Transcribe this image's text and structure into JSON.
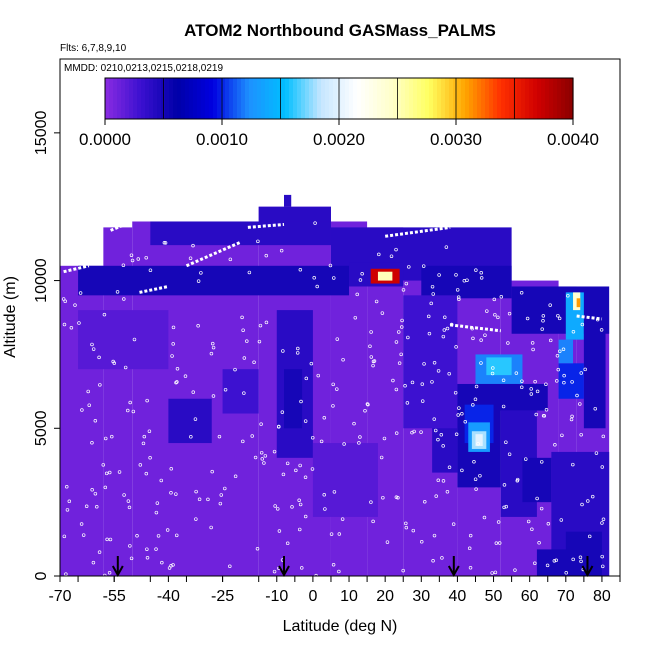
{
  "chart_data": {
    "type": "heatmap",
    "title": "ATOM2 Northbound GASMass_PALMS",
    "subtitle_flights": "Flts: 6,7,8,9,10",
    "subtitle_dates": "MMDD: 0210,0213,0215,0218,0219",
    "xlabel": "Latitude (deg N)",
    "ylabel": "Altitude (m)",
    "xlim": [
      -70,
      85
    ],
    "ylim": [
      0,
      17500
    ],
    "x_ticks": [
      "-70",
      "-55",
      "-40",
      "-25",
      "-10",
      "0",
      "10",
      "20",
      "30",
      "40",
      "50",
      "60",
      "70",
      "80"
    ],
    "x_tick_values": [
      -70,
      -55,
      -40,
      -25,
      -10,
      0,
      10,
      20,
      30,
      40,
      50,
      60,
      70,
      80
    ],
    "y_ticks": [
      "0",
      "5000",
      "10000",
      "15000"
    ],
    "y_tick_values": [
      0,
      5000,
      10000,
      15000
    ],
    "colorbar": {
      "ticks": [
        "0.0000",
        "0.0010",
        "0.0020",
        "0.0030",
        "0.0040"
      ],
      "tick_values": [
        0,
        0.001,
        0.002,
        0.003,
        0.004
      ],
      "range": [
        0,
        0.004
      ],
      "colors": [
        "#8a2be2",
        "#3b10d0",
        "#0000a8",
        "#0000e0",
        "#1e90ff",
        "#00bfff",
        "#c6e6ff",
        "#ffffff",
        "#ffffc8",
        "#ffff60",
        "#ffa500",
        "#ff3000",
        "#d00000",
        "#8b0000"
      ]
    },
    "background_value": 0.0001,
    "coverage": [
      {
        "lat": [
          -70,
          -58
        ],
        "alt_max": 10500
      },
      {
        "lat": [
          -58,
          -50
        ],
        "alt_max": 11800
      },
      {
        "lat": [
          -50,
          -15
        ],
        "alt_max": 12000
      },
      {
        "lat": [
          -15,
          5
        ],
        "alt_max": 12500
      },
      {
        "lat": [
          5,
          15
        ],
        "alt_max": 12000
      },
      {
        "lat": [
          15,
          25
        ],
        "alt_max": 11800
      },
      {
        "lat": [
          25,
          40
        ],
        "alt_max": 11700
      },
      {
        "lat": [
          40,
          52
        ],
        "alt_max": 11000
      },
      {
        "lat": [
          52,
          68
        ],
        "alt_max": 10000
      },
      {
        "lat": [
          68,
          73
        ],
        "alt_max": 9800
      },
      {
        "lat": [
          73,
          82
        ],
        "alt_max": 9000
      }
    ],
    "cells": [
      {
        "lat": [
          -15,
          5
        ],
        "alt": [
          12000,
          12500
        ],
        "value": 0.0004
      },
      {
        "lat": [
          -8,
          -6
        ],
        "alt": [
          12500,
          12900
        ],
        "value": 0.0004
      },
      {
        "lat": [
          -45,
          5
        ],
        "alt": [
          11200,
          12000
        ],
        "value": 0.0004
      },
      {
        "lat": [
          5,
          55
        ],
        "alt": [
          10000,
          11800
        ],
        "value": 0.0004
      },
      {
        "lat": [
          -65,
          10
        ],
        "alt": [
          9500,
          10500
        ],
        "value": 0.0005
      },
      {
        "lat": [
          10,
          25
        ],
        "alt": [
          9800,
          10600
        ],
        "value": 0.0004
      },
      {
        "lat": [
          16,
          24
        ],
        "alt": [
          9900,
          10400
        ],
        "value": 0.0037
      },
      {
        "lat": [
          18,
          22
        ],
        "alt": [
          10000,
          10300
        ],
        "value": 0.0025
      },
      {
        "lat": [
          30,
          55
        ],
        "alt": [
          9400,
          10500
        ],
        "value": 0.0005
      },
      {
        "lat": [
          55,
          82
        ],
        "alt": [
          8200,
          9800
        ],
        "value": 0.0005
      },
      {
        "lat": [
          70,
          75
        ],
        "alt": [
          8000,
          9600
        ],
        "value": 0.0014
      },
      {
        "lat": [
          72,
          74
        ],
        "alt": [
          9000,
          9600
        ],
        "value": 0.0024
      },
      {
        "lat": [
          73,
          74
        ],
        "alt": [
          9100,
          9400
        ],
        "value": 0.0031
      },
      {
        "lat": [
          75,
          81
        ],
        "alt": [
          5000,
          8500
        ],
        "value": 0.0005
      },
      {
        "lat": [
          68,
          75
        ],
        "alt": [
          6000,
          7200
        ],
        "value": 0.001
      },
      {
        "lat": [
          68,
          72
        ],
        "alt": [
          7200,
          8000
        ],
        "value": 0.0012
      },
      {
        "lat": [
          45,
          58
        ],
        "alt": [
          6500,
          7500
        ],
        "value": 0.0012
      },
      {
        "lat": [
          48,
          55
        ],
        "alt": [
          6800,
          7400
        ],
        "value": 0.0016
      },
      {
        "lat": [
          40,
          65
        ],
        "alt": [
          5600,
          6500
        ],
        "value": 0.0005
      },
      {
        "lat": [
          40,
          52
        ],
        "alt": [
          3000,
          5800
        ],
        "value": 0.0005
      },
      {
        "lat": [
          42,
          50
        ],
        "alt": [
          4500,
          5800
        ],
        "value": 0.001
      },
      {
        "lat": [
          43,
          49
        ],
        "alt": [
          4200,
          5200
        ],
        "value": 0.0013
      },
      {
        "lat": [
          44,
          48
        ],
        "alt": [
          4300,
          4900
        ],
        "value": 0.0018
      },
      {
        "lat": [
          45,
          47
        ],
        "alt": [
          4400,
          4800
        ],
        "value": 0.002
      },
      {
        "lat": [
          33,
          40
        ],
        "alt": [
          3500,
          6500
        ],
        "value": 0.0004
      },
      {
        "lat": [
          52,
          62
        ],
        "alt": [
          2000,
          5600
        ],
        "value": 0.0004
      },
      {
        "lat": [
          58,
          66
        ],
        "alt": [
          2500,
          4000
        ],
        "value": 0.0005
      },
      {
        "lat": [
          66,
          82
        ],
        "alt": [
          0,
          4200
        ],
        "value": 0.0004
      },
      {
        "lat": [
          70,
          80
        ],
        "alt": [
          0,
          1500
        ],
        "value": 0.0005
      },
      {
        "lat": [
          62,
          72
        ],
        "alt": [
          0,
          900
        ],
        "value": 0.0005
      },
      {
        "lat": [
          -10,
          0
        ],
        "alt": [
          4000,
          9000
        ],
        "value": 0.0004
      },
      {
        "lat": [
          -8,
          -3
        ],
        "alt": [
          5000,
          7000
        ],
        "value": 0.0005
      },
      {
        "lat": [
          -40,
          -28
        ],
        "alt": [
          4500,
          6000
        ],
        "value": 0.0004
      },
      {
        "lat": [
          -25,
          -15
        ],
        "alt": [
          5500,
          7000
        ],
        "value": 0.0003
      },
      {
        "lat": [
          0,
          18
        ],
        "alt": [
          2000,
          4500
        ],
        "value": 0.0002
      },
      {
        "lat": [
          25,
          40
        ],
        "alt": [
          5000,
          9500
        ],
        "value": 0.0003
      },
      {
        "lat": [
          -65,
          -40
        ],
        "alt": [
          7000,
          9000
        ],
        "value": 0.0002
      }
    ],
    "markers_lat": [
      -54,
      -8,
      39,
      76
    ],
    "tracks": [
      {
        "lat": [
          -56,
          -52
        ],
        "alt": [
          11700,
          11900
        ]
      },
      {
        "lat": [
          -48,
          -40
        ],
        "alt": [
          9600,
          9800
        ]
      },
      {
        "lat": [
          -35,
          -20
        ],
        "alt": [
          10500,
          11300
        ]
      },
      {
        "lat": [
          -18,
          -8
        ],
        "alt": [
          11800,
          11900
        ]
      },
      {
        "lat": [
          20,
          38
        ],
        "alt": [
          11500,
          11800
        ]
      },
      {
        "lat": [
          38,
          52
        ],
        "alt": [
          8500,
          8300
        ]
      },
      {
        "lat": [
          73,
          80
        ],
        "alt": [
          8800,
          8700
        ]
      },
      {
        "lat": [
          -69,
          -62
        ],
        "alt": [
          10300,
          10500
        ]
      }
    ]
  }
}
